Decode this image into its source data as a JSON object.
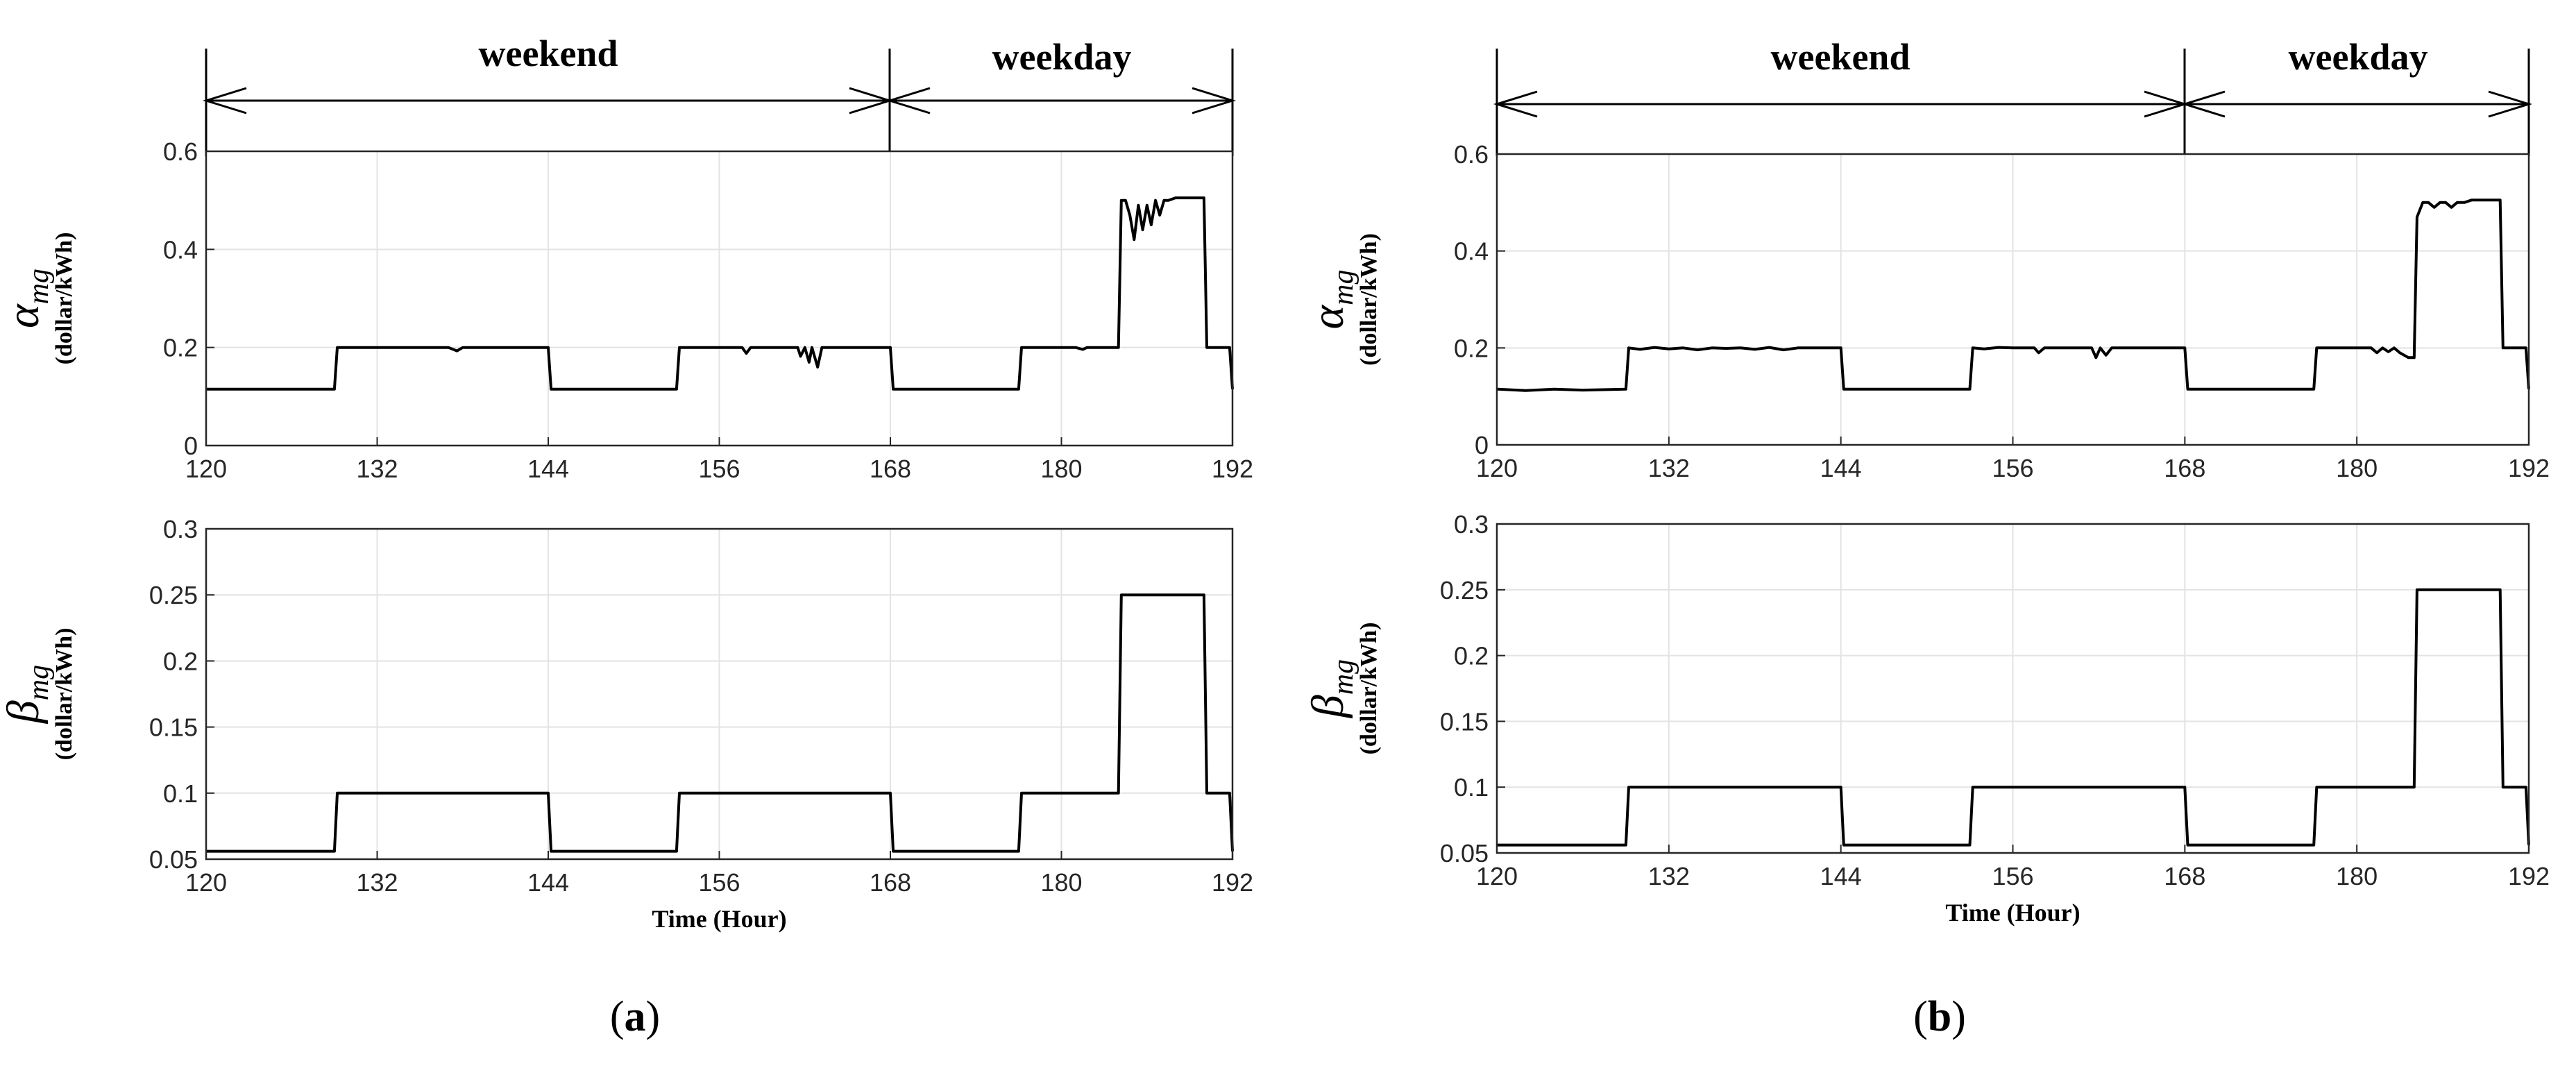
{
  "chart_data": [
    {
      "type": "line",
      "panel": "a",
      "subplot": "alpha",
      "ylabel_symbol": "α",
      "ylabel_subscript": "mg",
      "ylabel_unit": "(dollar/kWh)",
      "xlim": [
        120,
        192
      ],
      "ylim": [
        0,
        0.6
      ],
      "xticks": [
        "120",
        "132",
        "144",
        "156",
        "168",
        "180",
        "192"
      ],
      "yticks": [
        "0",
        "0.2",
        "0.4",
        "0.6"
      ],
      "grid": true,
      "series": [
        {
          "name": "alpha_mg",
          "x": [
            120,
            129,
            129.2,
            136,
            137,
            137.6,
            138,
            144,
            144.2,
            153,
            153.2,
            157.6,
            157.9,
            158.2,
            161.5,
            161.7,
            162,
            162.3,
            162.5,
            162.9,
            163.2,
            168,
            168.2,
            177,
            177.2,
            181,
            181.5,
            181.8,
            184,
            184.2,
            184.5,
            184.8,
            185.1,
            185.4,
            185.7,
            186,
            186.3,
            186.6,
            186.9,
            187.2,
            187.5,
            188,
            190,
            190.2,
            191.8,
            192
          ],
          "y": [
            0.115,
            0.115,
            0.2,
            0.2,
            0.2,
            0.193,
            0.2,
            0.2,
            0.115,
            0.115,
            0.2,
            0.2,
            0.188,
            0.2,
            0.2,
            0.182,
            0.2,
            0.17,
            0.2,
            0.16,
            0.2,
            0.2,
            0.115,
            0.115,
            0.2,
            0.2,
            0.196,
            0.2,
            0.2,
            0.5,
            0.5,
            0.47,
            0.42,
            0.49,
            0.44,
            0.49,
            0.45,
            0.5,
            0.47,
            0.5,
            0.5,
            0.505,
            0.505,
            0.2,
            0.2,
            0.115
          ]
        }
      ]
    },
    {
      "type": "line",
      "panel": "a",
      "subplot": "beta",
      "ylabel_symbol": "β",
      "ylabel_subscript": "mg",
      "ylabel_unit": "(dollar/kWh)",
      "xlabel": "Time (Hour)",
      "xlim": [
        120,
        192
      ],
      "ylim": [
        0.05,
        0.3
      ],
      "xticks": [
        "120",
        "132",
        "144",
        "156",
        "168",
        "180",
        "192"
      ],
      "yticks": [
        "0.05",
        "0.1",
        "0.15",
        "0.2",
        "0.25",
        "0.3"
      ],
      "grid": true,
      "series": [
        {
          "name": "beta_mg",
          "x": [
            120,
            129,
            129.2,
            144,
            144.2,
            153,
            153.2,
            168,
            168.2,
            177,
            177.2,
            184,
            184.2,
            190,
            190.2,
            191.8,
            192
          ],
          "y": [
            0.056,
            0.056,
            0.1,
            0.1,
            0.056,
            0.056,
            0.1,
            0.1,
            0.056,
            0.056,
            0.1,
            0.1,
            0.25,
            0.25,
            0.1,
            0.1,
            0.056
          ]
        }
      ]
    },
    {
      "type": "line",
      "panel": "b",
      "subplot": "alpha",
      "ylabel_symbol": "α",
      "ylabel_subscript": "mg",
      "ylabel_unit": "(dollar/kWh)",
      "xlim": [
        120,
        192
      ],
      "ylim": [
        0,
        0.6
      ],
      "xticks": [
        "120",
        "132",
        "144",
        "156",
        "168",
        "180",
        "192"
      ],
      "yticks": [
        "0",
        "0.2",
        "0.4",
        "0.6"
      ],
      "grid": true,
      "series": [
        {
          "name": "alpha_mg",
          "x": [
            120,
            122,
            124,
            126,
            129,
            129.2,
            130,
            131,
            132,
            133,
            134,
            135,
            136,
            137,
            138,
            139,
            140,
            141,
            144,
            144.2,
            153,
            153.2,
            154,
            155,
            156,
            157.5,
            157.8,
            158.2,
            161.5,
            161.8,
            162.1,
            162.5,
            162.9,
            163.3,
            168,
            168.2,
            177,
            177.2,
            181,
            181.4,
            181.8,
            182.2,
            182.6,
            183,
            183.6,
            184,
            184.2,
            184.6,
            185,
            185.4,
            185.8,
            186.2,
            186.6,
            187,
            187.5,
            188,
            190,
            190.2,
            191.8,
            192
          ],
          "y": [
            0.115,
            0.112,
            0.115,
            0.113,
            0.115,
            0.2,
            0.197,
            0.201,
            0.198,
            0.2,
            0.196,
            0.2,
            0.199,
            0.2,
            0.197,
            0.201,
            0.196,
            0.2,
            0.2,
            0.115,
            0.115,
            0.2,
            0.198,
            0.201,
            0.2,
            0.2,
            0.19,
            0.2,
            0.2,
            0.18,
            0.2,
            0.185,
            0.2,
            0.2,
            0.2,
            0.115,
            0.115,
            0.2,
            0.2,
            0.19,
            0.2,
            0.192,
            0.2,
            0.19,
            0.18,
            0.18,
            0.47,
            0.5,
            0.5,
            0.49,
            0.5,
            0.5,
            0.49,
            0.5,
            0.5,
            0.505,
            0.505,
            0.2,
            0.2,
            0.115
          ]
        }
      ]
    },
    {
      "type": "line",
      "panel": "b",
      "subplot": "beta",
      "ylabel_symbol": "β",
      "ylabel_subscript": "mg",
      "ylabel_unit": "(dollar/kWh)",
      "xlabel": "Time (Hour)",
      "xlim": [
        120,
        192
      ],
      "ylim": [
        0.05,
        0.3
      ],
      "xticks": [
        "120",
        "132",
        "144",
        "156",
        "168",
        "180",
        "192"
      ],
      "yticks": [
        "0.05",
        "0.1",
        "0.15",
        "0.2",
        "0.25",
        "0.3"
      ],
      "grid": true,
      "series": [
        {
          "name": "beta_mg",
          "x": [
            120,
            129,
            129.2,
            144,
            144.2,
            153,
            153.2,
            168,
            168.2,
            177,
            177.2,
            184,
            184.2,
            190,
            190.2,
            191.8,
            192
          ],
          "y": [
            0.056,
            0.056,
            0.1,
            0.1,
            0.056,
            0.056,
            0.1,
            0.1,
            0.056,
            0.056,
            0.1,
            0.1,
            0.25,
            0.25,
            0.1,
            0.1,
            0.056
          ]
        }
      ]
    }
  ],
  "periods": {
    "weekend": {
      "label": "weekend",
      "from": 120,
      "to": 168
    },
    "weekday": {
      "label": "weekday",
      "from": 168,
      "to": 192
    }
  },
  "panel_labels": {
    "a": {
      "open": "(",
      "letter": "a",
      "close": ")"
    },
    "b": {
      "open": "(",
      "letter": "b",
      "close": ")"
    }
  }
}
